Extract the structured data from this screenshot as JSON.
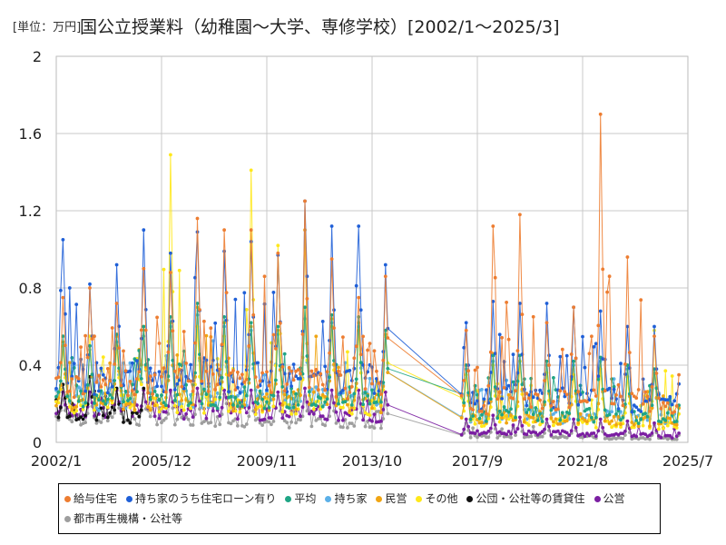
{
  "title": {
    "unit_label": "[単位：万円]",
    "main": "国公立授業料（幼稚園～大学、専修学校）[2002/1～2025/3]"
  },
  "chart_data": {
    "type": "line",
    "title": "国公立授業料（幼稚園～大学、専修学校）[2002/1～2025/3]",
    "unit": "[単位：万円]",
    "xlabel": "",
    "ylabel": "",
    "xlim": [
      "2002/1",
      "2025/7"
    ],
    "ylim": [
      0,
      2
    ],
    "x_tick_labels": [
      "2002/1",
      "2005/12",
      "2009/11",
      "2013/10",
      "2017/9",
      "2021/8",
      "2025/7"
    ],
    "y_tick_labels": [
      "0",
      "0.4",
      "0.8",
      "1.2",
      "1.6",
      "2"
    ],
    "grid": true,
    "legend_position": "bottom",
    "data_gap": [
      "2014/6",
      "2017/2"
    ],
    "series": [
      {
        "name": "給与住宅",
        "color": "#ED7D31",
        "peaks": [
          0.75,
          0.8,
          0.72,
          0.9,
          0.88,
          1.16,
          1.1,
          1.1,
          0.98,
          1.25,
          0.95,
          0.75,
          0.86,
          0.9,
          0.85,
          0.82,
          0.9,
          0.83,
          1.21,
          0.85,
          0.8,
          0.9,
          0.88,
          0.58,
          1.12,
          1.18,
          0.62,
          0.7,
          1.7,
          0.96,
          0.55,
          0.74,
          0.6,
          0.5,
          0.56,
          0.55,
          0.65,
          0.58,
          0.96
        ],
        "base": [
          0.3,
          0.32,
          0.3,
          0.32,
          0.33,
          0.3,
          0.31,
          0.3,
          0.32,
          0.33,
          0.3,
          0.3,
          0.28,
          0.3,
          0.29,
          0.28,
          0.29,
          0.28,
          0.3,
          0.27,
          0.28,
          0.28,
          0.27,
          0.2,
          0.25,
          0.24,
          0.22,
          0.22,
          0.24,
          0.22,
          0.2,
          0.22,
          0.2,
          0.18,
          0.2,
          0.19,
          0.2,
          0.18,
          0.2
        ]
      },
      {
        "name": "持ち家のうち住宅ローン有り",
        "color": "#1F5FD7",
        "peaks": [
          1.05,
          0.82,
          0.92,
          1.1,
          0.98,
          1.09,
          0.99,
          1.04,
          0.97,
          1.25,
          1.12,
          1.12,
          0.92,
          1.0,
          0.9,
          0.9,
          0.84,
          0.88,
          0.94,
          0.85,
          0.93,
          0.88,
          0.6,
          0.62,
          0.73,
          0.72,
          0.72,
          0.7,
          0.68,
          0.6,
          0.6,
          0.58,
          0.66,
          0.62,
          0.62,
          0.55,
          0.68,
          0.56,
          0.36
        ],
        "base": [
          0.35,
          0.33,
          0.34,
          0.35,
          0.34,
          0.35,
          0.34,
          0.33,
          0.34,
          0.35,
          0.33,
          0.33,
          0.32,
          0.31,
          0.3,
          0.3,
          0.3,
          0.29,
          0.3,
          0.28,
          0.28,
          0.28,
          0.27,
          0.22,
          0.24,
          0.24,
          0.23,
          0.22,
          0.23,
          0.21,
          0.2,
          0.21,
          0.2,
          0.19,
          0.2,
          0.19,
          0.2,
          0.18,
          0.19
        ]
      },
      {
        "name": "平均",
        "color": "#1FA585",
        "peaks": [
          0.55,
          0.5,
          0.56,
          0.6,
          0.65,
          0.72,
          0.65,
          0.62,
          0.6,
          0.7,
          0.66,
          0.65,
          0.58,
          0.6,
          0.55,
          0.55,
          0.52,
          0.5,
          0.52,
          0.5,
          0.5,
          0.48,
          0.45,
          0.4,
          0.45,
          0.45,
          0.42,
          0.42,
          0.44,
          0.4,
          0.38,
          0.38,
          0.38,
          0.36,
          0.36,
          0.35,
          0.36,
          0.34,
          0.3
        ],
        "base": [
          0.24,
          0.23,
          0.24,
          0.24,
          0.24,
          0.24,
          0.23,
          0.23,
          0.23,
          0.24,
          0.23,
          0.22,
          0.22,
          0.21,
          0.21,
          0.2,
          0.2,
          0.2,
          0.2,
          0.19,
          0.19,
          0.19,
          0.18,
          0.14,
          0.15,
          0.15,
          0.14,
          0.14,
          0.14,
          0.13,
          0.13,
          0.13,
          0.12,
          0.12,
          0.12,
          0.11,
          0.11,
          0.11,
          0.1
        ]
      },
      {
        "name": "持ち家",
        "color": "#5BB0E8",
        "peaks": [
          0.5,
          0.48,
          0.52,
          0.55,
          0.6,
          0.66,
          0.6,
          0.58,
          0.56,
          0.64,
          0.62,
          0.6,
          0.55,
          0.56,
          0.52,
          0.52,
          0.5,
          0.48,
          0.5,
          0.48,
          0.48,
          0.46,
          0.44,
          0.38,
          0.42,
          0.42,
          0.4,
          0.4,
          0.42,
          0.38,
          0.36,
          0.36,
          0.36,
          0.34,
          0.34,
          0.33,
          0.34,
          0.32,
          0.28
        ],
        "base": [
          0.23,
          0.22,
          0.23,
          0.23,
          0.23,
          0.23,
          0.22,
          0.22,
          0.22,
          0.23,
          0.22,
          0.21,
          0.21,
          0.2,
          0.2,
          0.19,
          0.19,
          0.19,
          0.19,
          0.18,
          0.18,
          0.18,
          0.17,
          0.13,
          0.14,
          0.14,
          0.13,
          0.13,
          0.13,
          0.12,
          0.12,
          0.12,
          0.11,
          0.11,
          0.11,
          0.1,
          0.1,
          0.1,
          0.09
        ]
      },
      {
        "name": "民営",
        "color": "#F0A513",
        "peaks": [
          0.52,
          0.5,
          0.55,
          0.6,
          0.62,
          0.7,
          0.62,
          0.6,
          0.58,
          1.1,
          0.64,
          0.62,
          0.56,
          0.58,
          0.54,
          0.54,
          0.52,
          0.5,
          0.52,
          0.5,
          0.5,
          0.48,
          0.45,
          0.4,
          0.46,
          0.45,
          0.42,
          0.42,
          0.44,
          0.4,
          0.38,
          0.38,
          0.38,
          0.36,
          0.36,
          0.35,
          0.36,
          0.34,
          0.3
        ],
        "base": [
          0.22,
          0.21,
          0.22,
          0.22,
          0.22,
          0.22,
          0.21,
          0.21,
          0.21,
          0.22,
          0.21,
          0.2,
          0.2,
          0.19,
          0.19,
          0.18,
          0.18,
          0.18,
          0.18,
          0.17,
          0.17,
          0.17,
          0.16,
          0.12,
          0.13,
          0.13,
          0.12,
          0.12,
          0.12,
          0.11,
          0.11,
          0.11,
          0.1,
          0.1,
          0.1,
          0.09,
          0.09,
          0.09,
          0.08
        ]
      },
      {
        "name": "その他",
        "color": "#FFE81A",
        "peaks": [
          0.5,
          0.55,
          0.5,
          0.6,
          1.49,
          0.6,
          0.55,
          1.41,
          1.02,
          0.7,
          0.6,
          0.58,
          0.55,
          0.5,
          0.52,
          0.5,
          0.48,
          0.45,
          0.45,
          0.42,
          0.42,
          0.4,
          0.4,
          0.35,
          0.4,
          0.42,
          0.36,
          0.35,
          0.38,
          0.34,
          0.58,
          0.32,
          0.32,
          0.3,
          0.3,
          0.28,
          0.3,
          0.28,
          0.25
        ],
        "base": [
          0.2,
          0.19,
          0.2,
          0.2,
          0.2,
          0.2,
          0.19,
          0.19,
          0.19,
          0.2,
          0.19,
          0.18,
          0.18,
          0.17,
          0.17,
          0.16,
          0.16,
          0.16,
          0.16,
          0.15,
          0.15,
          0.15,
          0.14,
          0.1,
          0.11,
          0.11,
          0.1,
          0.1,
          0.1,
          0.09,
          0.09,
          0.09,
          0.08,
          0.08,
          0.08,
          0.07,
          0.07,
          0.07,
          0.06
        ]
      },
      {
        "name": "公団・公社等の賃貸住",
        "color": "#111111",
        "peaks": [
          0.3,
          0.34,
          0.28
        ],
        "base": [
          0.14,
          0.15,
          0.13
        ]
      },
      {
        "name": "公営",
        "color": "#7B1FA2",
        "peaks": [
          0.26,
          0.26,
          0.27,
          0.27,
          0.27,
          0.28,
          0.27,
          0.27,
          0.26,
          0.28,
          0.27,
          0.27,
          0.26,
          0.26,
          0.25,
          0.25,
          0.25,
          0.24,
          0.24,
          0.24,
          0.24,
          0.23,
          0.22,
          0.12,
          0.14,
          0.13,
          0.12,
          0.12,
          0.12,
          0.11,
          0.1,
          0.1,
          0.1,
          0.09,
          0.09,
          0.08,
          0.08,
          0.08,
          0.07
        ],
        "base": [
          0.16,
          0.16,
          0.16,
          0.16,
          0.16,
          0.16,
          0.15,
          0.15,
          0.15,
          0.15,
          0.15,
          0.14,
          0.14,
          0.14,
          0.14,
          0.13,
          0.13,
          0.13,
          0.13,
          0.12,
          0.12,
          0.12,
          0.11,
          0.05,
          0.05,
          0.05,
          0.05,
          0.04,
          0.04,
          0.04,
          0.03,
          0.03,
          0.03,
          0.03,
          0.03,
          0.02,
          0.02,
          0.02,
          0.02
        ]
      },
      {
        "name": "都市再生機構・公社等",
        "color": "#9E9E9E",
        "peaks": [
          0.22,
          0.24,
          0.25,
          0.25,
          0.26,
          0.25,
          0.25,
          0.24,
          0.24,
          0.24,
          0.24,
          0.23,
          0.22,
          0.22,
          0.22,
          0.21,
          0.21,
          0.2,
          0.2,
          0.2,
          0.2,
          0.19,
          0.18,
          0.1,
          0.12,
          0.11,
          0.1,
          0.1,
          0.1,
          0.09,
          0.09,
          0.09,
          0.08,
          0.08,
          0.08,
          0.07,
          0.07,
          0.07,
          0.06
        ],
        "base": [
          0.12,
          0.12,
          0.12,
          0.11,
          0.11,
          0.11,
          0.11,
          0.1,
          0.1,
          0.1,
          0.1,
          0.09,
          0.09,
          0.09,
          0.09,
          0.08,
          0.08,
          0.08,
          0.08,
          0.07,
          0.07,
          0.07,
          0.06,
          0.03,
          0.03,
          0.03,
          0.03,
          0.03,
          0.02,
          0.02,
          0.02,
          0.02,
          0.02,
          0.02,
          0.01,
          0.01,
          0.01,
          0.01,
          0.01
        ]
      }
    ]
  }
}
